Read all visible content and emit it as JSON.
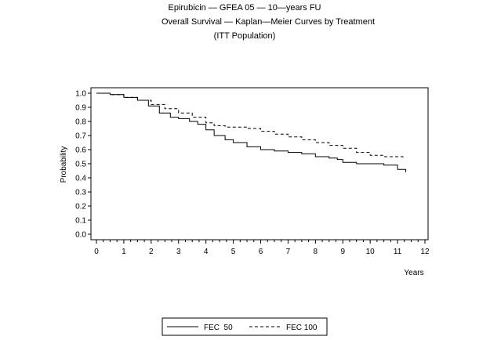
{
  "chart_data": {
    "type": "line",
    "title_lines": [
      "Epirubicin — GFEA 05 — 10—years FU",
      "Overall Survival — Kaplan—Meier Curves by Treatment",
      "(ITT Population)"
    ],
    "xlabel": "Years",
    "ylabel": "Probability",
    "xlim": [
      0,
      12
    ],
    "ylim": [
      0,
      1
    ],
    "x_ticks": [
      0,
      1,
      2,
      3,
      4,
      5,
      6,
      7,
      8,
      9,
      10,
      11,
      12
    ],
    "y_ticks": [
      "0.0",
      "0.1",
      "0.2",
      "0.3",
      "0.4",
      "0.5",
      "0.6",
      "0.7",
      "0.8",
      "0.9",
      "1.0"
    ],
    "grid": false,
    "legend_position": "bottom",
    "step": true,
    "series": [
      {
        "name": "FEC  50",
        "style": "solid",
        "color": "#000000",
        "points": [
          [
            0,
            1.0
          ],
          [
            0.5,
            0.99
          ],
          [
            1.0,
            0.97
          ],
          [
            1.5,
            0.95
          ],
          [
            1.9,
            0.91
          ],
          [
            2.3,
            0.86
          ],
          [
            2.7,
            0.83
          ],
          [
            3.0,
            0.82
          ],
          [
            3.4,
            0.8
          ],
          [
            3.7,
            0.78
          ],
          [
            4.0,
            0.74
          ],
          [
            4.3,
            0.7
          ],
          [
            4.7,
            0.67
          ],
          [
            5.0,
            0.65
          ],
          [
            5.5,
            0.62
          ],
          [
            6.0,
            0.6
          ],
          [
            6.5,
            0.59
          ],
          [
            7.0,
            0.58
          ],
          [
            7.5,
            0.57
          ],
          [
            8.0,
            0.55
          ],
          [
            8.5,
            0.54
          ],
          [
            8.8,
            0.53
          ],
          [
            9.0,
            0.51
          ],
          [
            9.5,
            0.5
          ],
          [
            10.0,
            0.5
          ],
          [
            10.5,
            0.49
          ],
          [
            11.0,
            0.46
          ],
          [
            11.3,
            0.45
          ],
          [
            11.3,
            0.44
          ]
        ]
      },
      {
        "name": "FEC 100",
        "style": "dashed",
        "color": "#000000",
        "points": [
          [
            0,
            1.0
          ],
          [
            0.5,
            0.99
          ],
          [
            1.0,
            0.97
          ],
          [
            1.5,
            0.95
          ],
          [
            2.0,
            0.92
          ],
          [
            2.5,
            0.89
          ],
          [
            3.0,
            0.86
          ],
          [
            3.5,
            0.83
          ],
          [
            4.0,
            0.79
          ],
          [
            4.3,
            0.77
          ],
          [
            4.7,
            0.76
          ],
          [
            5.0,
            0.76
          ],
          [
            5.5,
            0.75
          ],
          [
            6.0,
            0.73
          ],
          [
            6.5,
            0.71
          ],
          [
            7.0,
            0.69
          ],
          [
            7.5,
            0.67
          ],
          [
            8.0,
            0.65
          ],
          [
            8.5,
            0.63
          ],
          [
            9.0,
            0.61
          ],
          [
            9.5,
            0.58
          ],
          [
            10.0,
            0.56
          ],
          [
            10.5,
            0.55
          ],
          [
            11.0,
            0.55
          ],
          [
            11.2,
            0.53
          ]
        ]
      }
    ]
  }
}
